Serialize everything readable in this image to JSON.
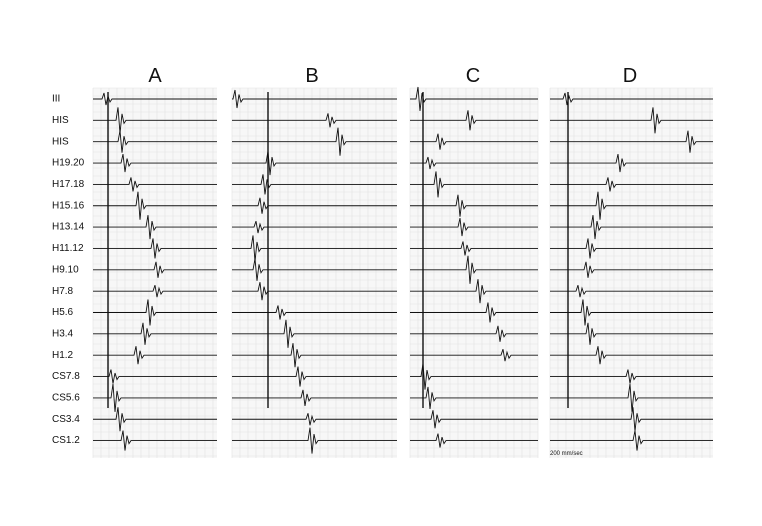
{
  "panels": [
    {
      "label": "A"
    },
    {
      "label": "B"
    },
    {
      "label": "C"
    },
    {
      "label": "D"
    }
  ],
  "channels": [
    "III",
    "HIS",
    "HIS",
    "H19.20",
    "H17.18",
    "H15.16",
    "H13.14",
    "H11.12",
    "H9.10",
    "H7.8",
    "H5.6",
    "H3.4",
    "H1.2",
    "CS7.8",
    "CS5.6",
    "CS3.4",
    "CS1.2"
  ],
  "scale_label": "200 mm/sec"
}
